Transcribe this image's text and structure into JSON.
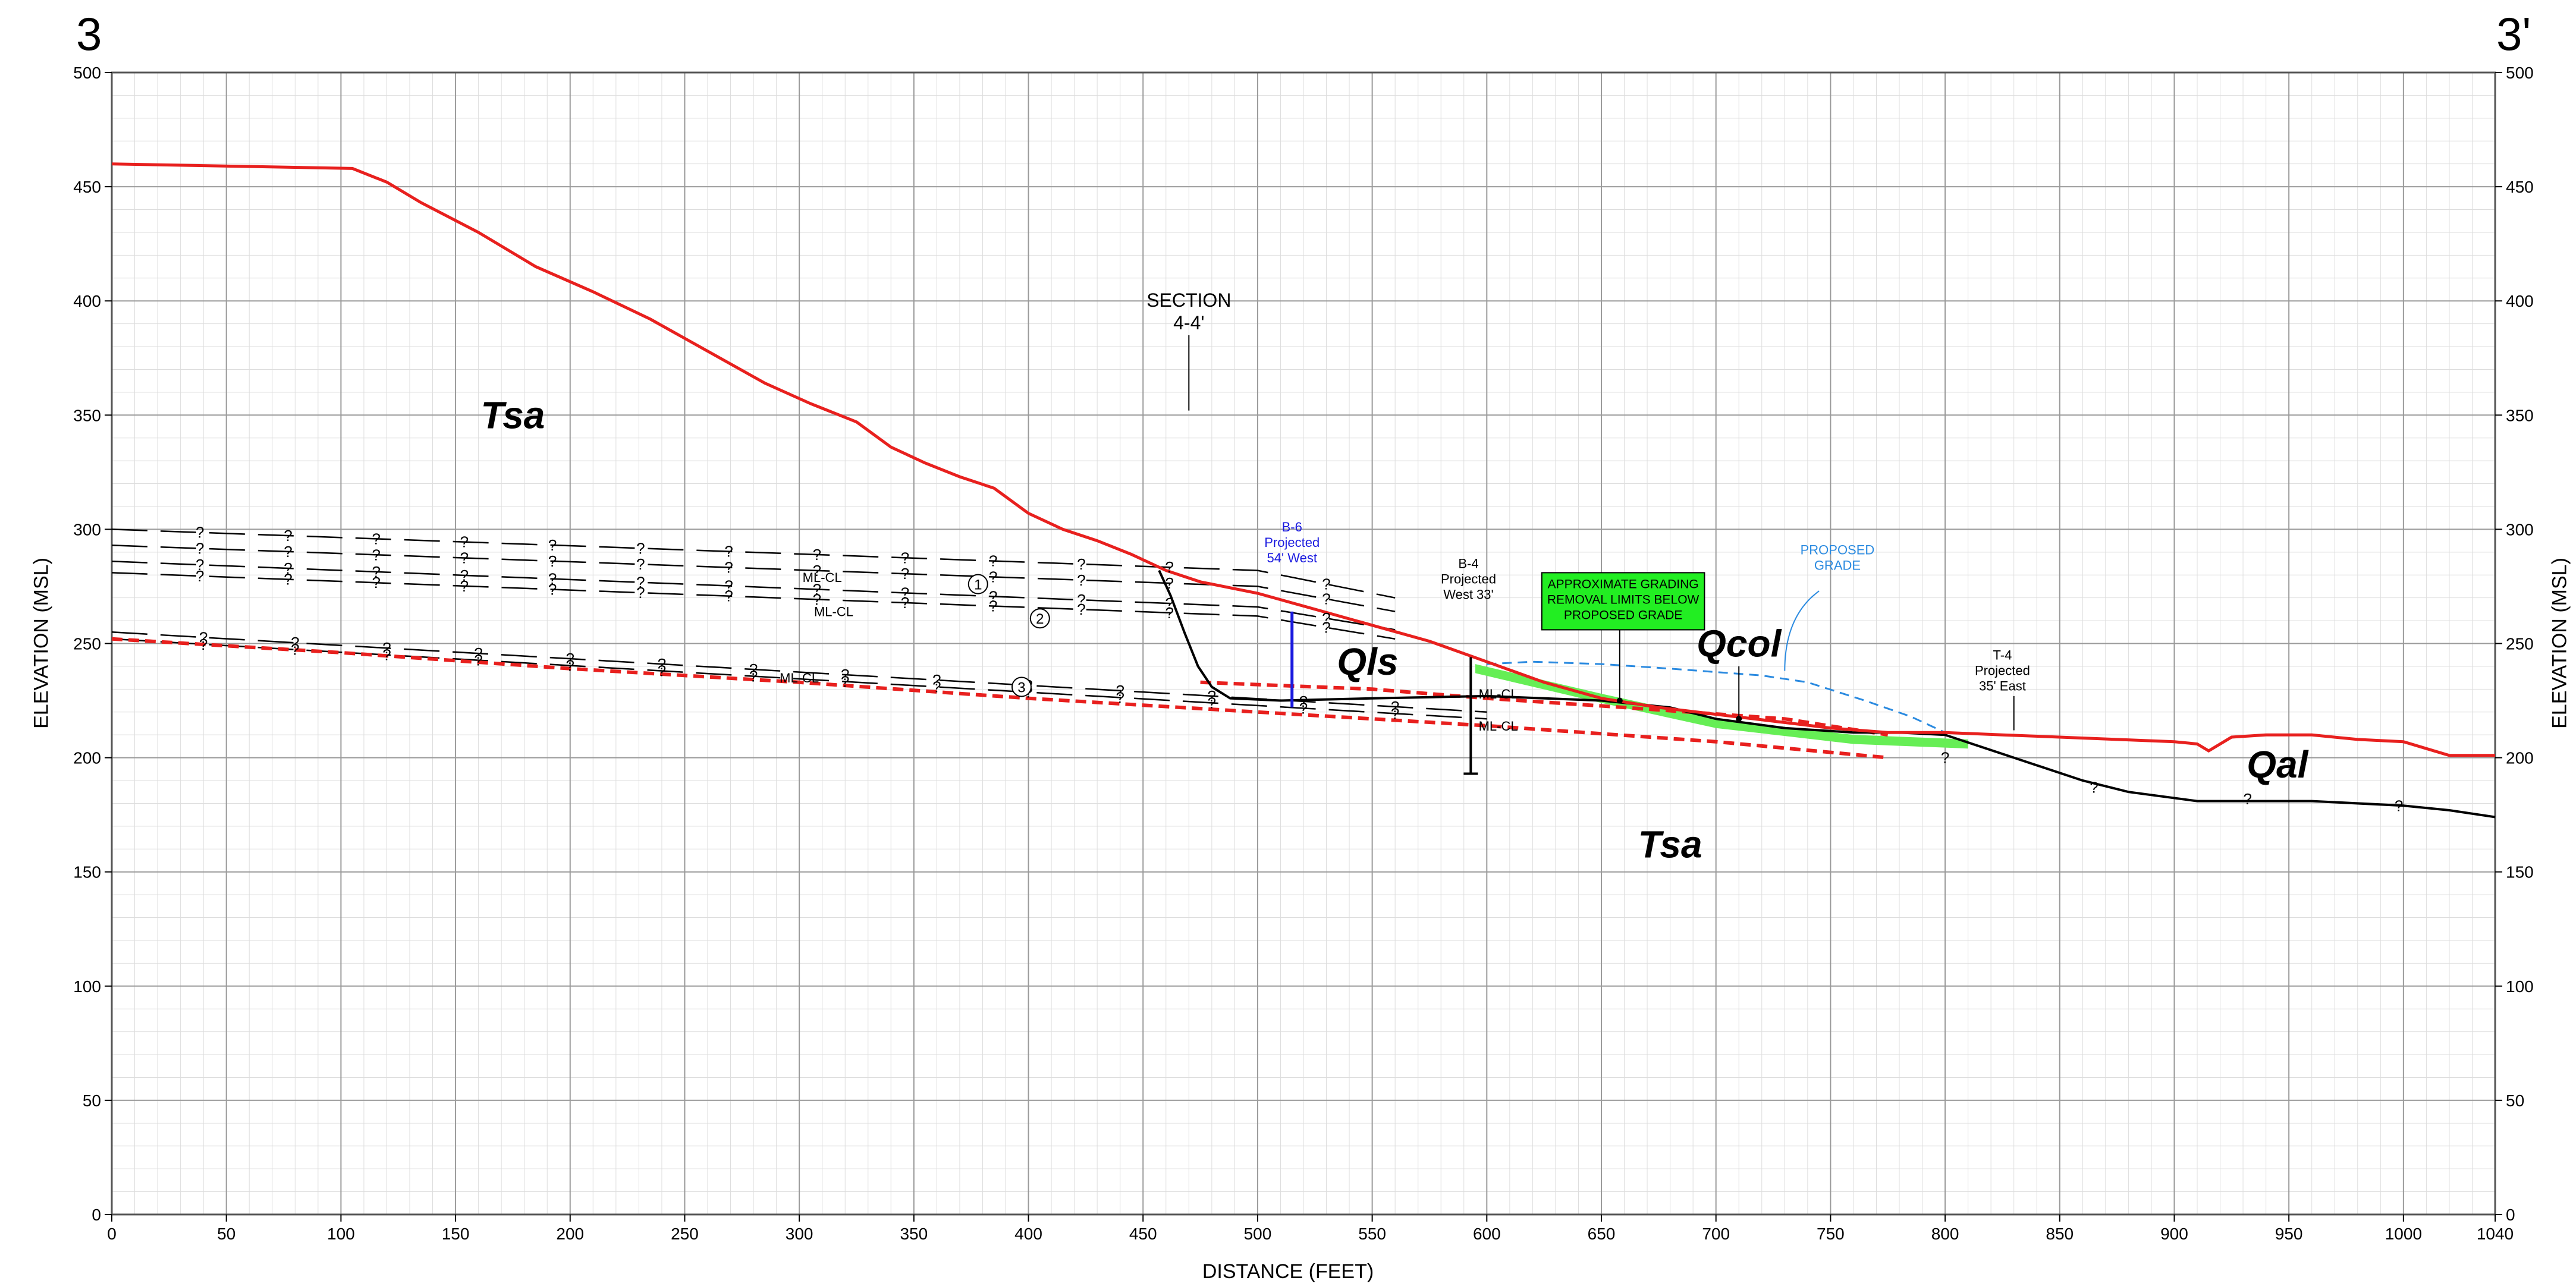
{
  "section": {
    "start_label": "3",
    "end_label": "3'"
  },
  "axes": {
    "xlabel": "DISTANCE (FEET)",
    "ylabel": "ELEVATION (MSL)",
    "xlim": [
      0,
      1040
    ],
    "ylim": [
      0,
      500
    ],
    "x_ticks": [
      "0",
      "50",
      "100",
      "150",
      "200",
      "250",
      "300",
      "350",
      "400",
      "450",
      "500",
      "550",
      "600",
      "650",
      "700",
      "750",
      "800",
      "850",
      "900",
      "950",
      "1000",
      "1040"
    ],
    "y_ticks": [
      "0",
      "50",
      "100",
      "150",
      "200",
      "250",
      "300",
      "350",
      "400",
      "450",
      "500"
    ]
  },
  "units": [
    {
      "label": "Tsa",
      "x": 175,
      "y": 350
    },
    {
      "label": "Tsa",
      "x": 680,
      "y": 162
    },
    {
      "label": "Qls",
      "x": 548,
      "y": 242
    },
    {
      "label": "Qcol",
      "x": 710,
      "y": 250
    },
    {
      "label": "Qal",
      "x": 945,
      "y": 197
    }
  ],
  "annotations": {
    "section_call": [
      "SECTION",
      "4-4'"
    ],
    "b6": [
      "B-6",
      "Projected",
      "54' West"
    ],
    "b4": [
      "B-4",
      "Projected",
      "West 33'"
    ],
    "t4": [
      "T-4",
      "Projected",
      "35' East"
    ],
    "grading": [
      "APPROXIMATE GRADING",
      "REMOVAL LIMITS BELOW",
      "PROPOSED GRADE"
    ],
    "proposed_grade": [
      "PROPOSED",
      "GRADE"
    ],
    "bed_labels": [
      "1",
      "2",
      "3"
    ],
    "soil_label": "ML-CL",
    "question": "?"
  },
  "colors": {
    "ground": "#e8201e",
    "contact": "#000000",
    "proposed": "#2a8ae0",
    "b6": "#1a1adf",
    "grading_fill": "#22ee22",
    "removal": "#66ee55",
    "grid_major": "#9a9a9a",
    "grid_minor": "#dddddd"
  },
  "chart_data": {
    "type": "cross-section",
    "ground_surface": [
      [
        0,
        460
      ],
      [
        105,
        458
      ],
      [
        120,
        452
      ],
      [
        135,
        443
      ],
      [
        160,
        430
      ],
      [
        185,
        415
      ],
      [
        210,
        404
      ],
      [
        235,
        392
      ],
      [
        260,
        378
      ],
      [
        285,
        364
      ],
      [
        305,
        355
      ],
      [
        325,
        347
      ],
      [
        340,
        336
      ],
      [
        355,
        329
      ],
      [
        370,
        323
      ],
      [
        385,
        318
      ],
      [
        400,
        307
      ],
      [
        415,
        300
      ],
      [
        430,
        295
      ],
      [
        445,
        289
      ],
      [
        460,
        282
      ],
      [
        475,
        277
      ],
      [
        500,
        272
      ],
      [
        525,
        265
      ],
      [
        550,
        258
      ],
      [
        575,
        251
      ],
      [
        600,
        242
      ],
      [
        625,
        233
      ],
      [
        650,
        226
      ],
      [
        675,
        222
      ],
      [
        700,
        219
      ],
      [
        725,
        216
      ],
      [
        750,
        213
      ],
      [
        775,
        211
      ],
      [
        800,
        211
      ],
      [
        825,
        210
      ],
      [
        850,
        209
      ],
      [
        875,
        208
      ],
      [
        900,
        207
      ],
      [
        910,
        206
      ],
      [
        915,
        203
      ],
      [
        925,
        209
      ],
      [
        940,
        210
      ],
      [
        960,
        210
      ],
      [
        980,
        208
      ],
      [
        1000,
        207
      ],
      [
        1020,
        201
      ],
      [
        1040,
        201
      ]
    ],
    "bedrock_contact": [
      [
        457,
        282
      ],
      [
        462,
        271
      ],
      [
        468,
        255
      ],
      [
        474,
        240
      ],
      [
        480,
        231
      ],
      [
        488,
        226
      ],
      [
        510,
        225
      ],
      [
        550,
        226
      ],
      [
        600,
        227
      ],
      [
        650,
        225
      ],
      [
        680,
        222
      ],
      [
        700,
        217
      ],
      [
        730,
        213
      ],
      [
        760,
        211
      ],
      [
        780,
        211
      ],
      [
        800,
        210
      ],
      [
        830,
        200
      ],
      [
        860,
        190
      ],
      [
        880,
        185
      ],
      [
        910,
        181
      ],
      [
        960,
        181
      ],
      [
        1000,
        179
      ],
      [
        1020,
        177
      ],
      [
        1040,
        174
      ]
    ],
    "proposed_grade": [
      [
        600,
        241
      ],
      [
        620,
        242
      ],
      [
        650,
        241
      ],
      [
        680,
        239
      ],
      [
        720,
        236
      ],
      [
        740,
        233
      ],
      [
        765,
        225
      ],
      [
        785,
        218
      ],
      [
        800,
        211
      ]
    ],
    "shear_zone": [
      [
        0,
        252
      ],
      [
        100,
        246
      ],
      [
        200,
        239
      ],
      [
        300,
        233
      ],
      [
        400,
        226
      ],
      [
        500,
        220
      ],
      [
        600,
        214
      ],
      [
        700,
        207
      ],
      [
        775,
        200
      ]
    ],
    "slide_plane": [
      [
        475,
        233
      ],
      [
        550,
        230
      ],
      [
        600,
        226
      ],
      [
        660,
        222
      ],
      [
        730,
        217
      ],
      [
        775,
        210
      ]
    ],
    "removal_zone": [
      [
        595,
        241
      ],
      [
        650,
        228
      ],
      [
        700,
        217
      ],
      [
        760,
        210
      ],
      [
        810,
        208
      ],
      [
        810,
        204
      ],
      [
        760,
        206
      ],
      [
        700,
        213
      ],
      [
        650,
        224
      ],
      [
        595,
        237
      ]
    ],
    "beds": [
      {
        "name": "1",
        "lines": [
          [
            [
              0,
              300
            ],
            [
              500,
              282
            ],
            [
              560,
              270
            ]
          ],
          [
            [
              0,
              293
            ],
            [
              500,
              275
            ],
            [
              560,
              264
            ]
          ]
        ]
      },
      {
        "name": "2",
        "lines": [
          [
            [
              0,
              286
            ],
            [
              500,
              266
            ],
            [
              560,
              256
            ]
          ],
          [
            [
              0,
              281
            ],
            [
              500,
              262
            ],
            [
              560,
              252
            ]
          ]
        ]
      },
      {
        "name": "3",
        "lines": [
          [
            [
              0,
              255
            ],
            [
              600,
              220
            ]
          ],
          [
            [
              0,
              252
            ],
            [
              600,
              217
            ]
          ]
        ]
      }
    ],
    "borings": [
      {
        "name": "B-6",
        "x": 515,
        "top": 264,
        "bottom": 222
      },
      {
        "name": "B-4",
        "x": 593,
        "top": 244,
        "bottom": 193
      }
    ],
    "t4_x": 830
  }
}
